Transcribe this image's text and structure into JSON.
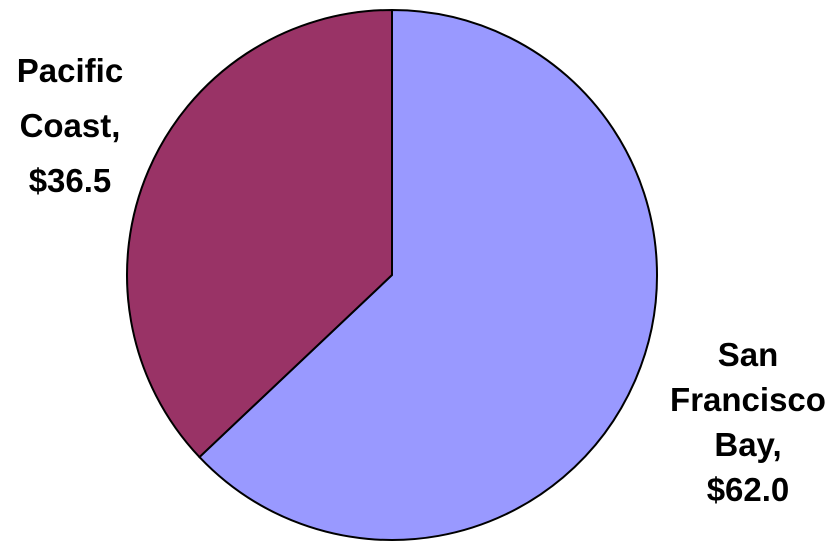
{
  "chart_data": {
    "type": "pie",
    "title": "",
    "slices": [
      {
        "name": "San Francisco Bay",
        "value": 62.0,
        "label_lines": [
          "San",
          "Francisco",
          "Bay,",
          "$62.0"
        ],
        "color": "#9999ff"
      },
      {
        "name": "Pacific Coast",
        "value": 36.5,
        "label_lines": [
          "Pacific",
          "Coast,",
          "$36.5"
        ],
        "color": "#993366"
      }
    ],
    "start_angle_deg": 0,
    "direction": "clockwise",
    "outline_color": "#000000",
    "legend": "none"
  }
}
